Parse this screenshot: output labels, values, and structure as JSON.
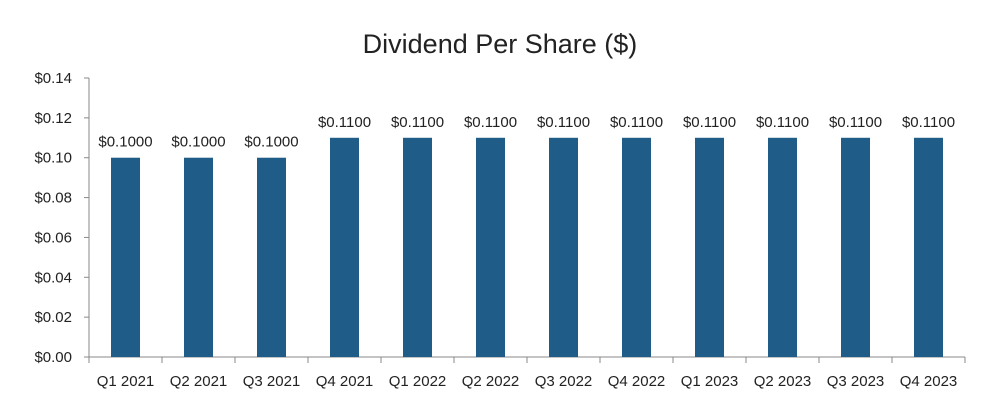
{
  "chart_data": {
    "type": "bar",
    "title": "Dividend Per Share ($)",
    "xlabel": "",
    "ylabel": "",
    "categories": [
      "Q1 2021",
      "Q2 2021",
      "Q3 2021",
      "Q4 2021",
      "Q1 2022",
      "Q2 2022",
      "Q3 2022",
      "Q4 2022",
      "Q1 2023",
      "Q2 2023",
      "Q3 2023",
      "Q4 2023"
    ],
    "values": [
      0.1,
      0.1,
      0.1,
      0.11,
      0.11,
      0.11,
      0.11,
      0.11,
      0.11,
      0.11,
      0.11,
      0.11
    ],
    "data_labels": [
      "$0.1000",
      "$0.1000",
      "$0.1000",
      "$0.1100",
      "$0.1100",
      "$0.1100",
      "$0.1100",
      "$0.1100",
      "$0.1100",
      "$0.1100",
      "$0.1100",
      "$0.1100"
    ],
    "ylim": [
      0,
      0.14
    ],
    "yticks": [
      0.0,
      0.02,
      0.04,
      0.06,
      0.08,
      0.1,
      0.12,
      0.14
    ],
    "ytick_labels": [
      "$0.00",
      "$0.02",
      "$0.04",
      "$0.06",
      "$0.08",
      "$0.10",
      "$0.12",
      "$0.14"
    ],
    "grid": false,
    "legend": "none",
    "colors": {
      "bar": "#1f5c87",
      "axis": "#888888",
      "text": "#222222"
    }
  }
}
